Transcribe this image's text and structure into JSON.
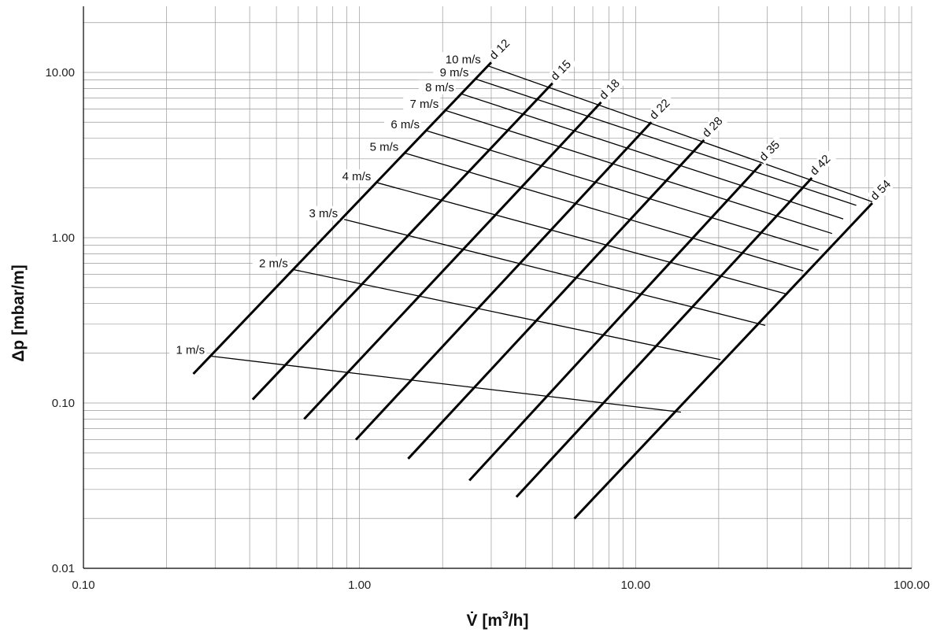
{
  "chart_data": {
    "type": "line",
    "xscale": "log",
    "yscale": "log",
    "xlim": [
      0.1,
      100
    ],
    "ylim": [
      0.01,
      20
    ],
    "grid": true,
    "xlabel": "V̇ [m³/h]",
    "xlabel_main": "V̇ [m",
    "xlabel_sup": "3",
    "xlabel_tail": "/h]",
    "ylabel": "Δp [mbar/m]",
    "x_ticks": [
      {
        "value": 0.1,
        "label": "0.10"
      },
      {
        "value": 1,
        "label": "1.00"
      },
      {
        "value": 10,
        "label": "10.00"
      },
      {
        "value": 100,
        "label": "100.00"
      }
    ],
    "y_ticks": [
      {
        "value": 0.01,
        "label": "0.01"
      },
      {
        "value": 0.1,
        "label": "0.10"
      },
      {
        "value": 1,
        "label": "1.00"
      },
      {
        "value": 10,
        "label": "10.00"
      }
    ],
    "pipe_series": [
      {
        "name": "d 12",
        "x": [
          0.25,
          3.0
        ],
        "y": [
          0.15,
          11.5
        ]
      },
      {
        "name": "d 15",
        "x": [
          0.41,
          5.0
        ],
        "y": [
          0.105,
          8.6
        ]
      },
      {
        "name": "d 18",
        "x": [
          0.63,
          7.5
        ],
        "y": [
          0.08,
          6.6
        ]
      },
      {
        "name": "d 22",
        "x": [
          0.97,
          11.4
        ],
        "y": [
          0.06,
          5.0
        ]
      },
      {
        "name": "d 28",
        "x": [
          1.5,
          17.7
        ],
        "y": [
          0.046,
          3.9
        ]
      },
      {
        "name": "d 35",
        "x": [
          2.5,
          28.5
        ],
        "y": [
          0.034,
          2.8
        ]
      },
      {
        "name": "d 42",
        "x": [
          3.7,
          43.5
        ],
        "y": [
          0.027,
          2.3
        ]
      },
      {
        "name": "d 54",
        "x": [
          6.0,
          72.0
        ],
        "y": [
          0.02,
          1.62
        ]
      }
    ],
    "velocity_series": [
      {
        "name": "1 m/s",
        "x": [
          0.29,
          14.6
        ],
        "y": [
          0.192,
          0.088
        ]
      },
      {
        "name": "2 m/s",
        "x": [
          0.58,
          20.3
        ],
        "y": [
          0.64,
          0.183
        ]
      },
      {
        "name": "3 m/s",
        "x": [
          0.88,
          29.5
        ],
        "y": [
          1.29,
          0.295
        ]
      },
      {
        "name": "4 m/s",
        "x": [
          1.16,
          35.5
        ],
        "y": [
          2.15,
          0.455
        ]
      },
      {
        "name": "5 m/s",
        "x": [
          1.46,
          40.5
        ],
        "y": [
          3.25,
          0.63
        ]
      },
      {
        "name": "6 m/s",
        "x": [
          1.74,
          46.0
        ],
        "y": [
          4.45,
          0.84
        ]
      },
      {
        "name": "7 m/s",
        "x": [
          2.04,
          51.5
        ],
        "y": [
          5.9,
          1.06
        ]
      },
      {
        "name": "8 m/s",
        "x": [
          2.32,
          56.5
        ],
        "y": [
          7.45,
          1.3
        ]
      },
      {
        "name": "9 m/s",
        "x": [
          2.62,
          63.0
        ],
        "y": [
          9.15,
          1.57
        ]
      },
      {
        "name": "10 m/s",
        "x": [
          2.9,
          72.0
        ],
        "y": [
          11.0,
          1.65
        ]
      }
    ]
  }
}
